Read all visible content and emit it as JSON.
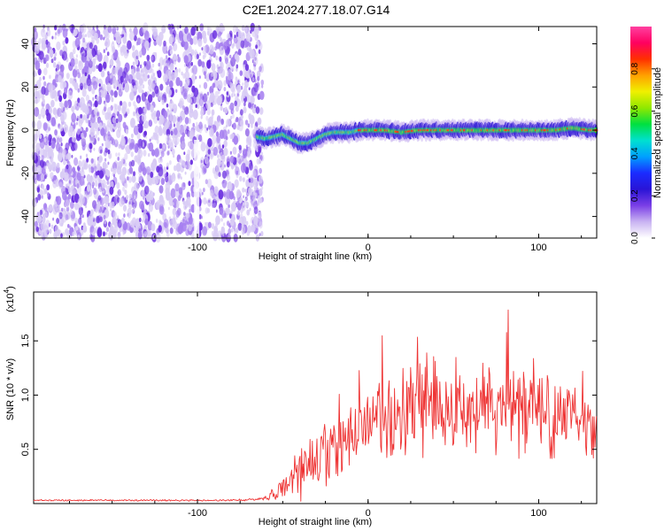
{
  "title": "C2E1.2024.277.18.07.G14",
  "chart_data": [
    {
      "type": "heatmap",
      "xlabel": "Height of straight line (km)",
      "ylabel": "Frequency (Hz)",
      "xlim": [
        -196,
        134
      ],
      "ylim": [
        -50,
        48
      ],
      "xticks": [
        -100,
        0,
        100
      ],
      "yticks": [
        -40,
        -20,
        0,
        20,
        40
      ],
      "noise_region_x": [
        -196,
        -65
      ],
      "signal_line": {
        "x": [
          -65,
          -60,
          -55,
          -50,
          -45,
          -40,
          -35,
          -30,
          -25,
          -20,
          -15,
          -10,
          -5,
          0,
          10,
          20,
          30,
          40,
          50,
          60,
          70,
          80,
          90,
          100,
          110,
          120,
          130,
          134
        ],
        "frequency": [
          -3,
          -4,
          -3,
          -2,
          -4,
          -6,
          -6,
          -4,
          -2,
          -1,
          -1,
          -1,
          0,
          0,
          0,
          -1,
          0,
          0,
          0,
          0,
          0,
          0,
          0,
          0,
          0,
          1,
          0,
          0
        ]
      },
      "colorbar": {
        "label": "Normalized spectral amplitude",
        "ticks": [
          "0.0",
          "0.2",
          "0.4",
          "0.6",
          "0.8"
        ],
        "range": [
          0,
          1
        ],
        "colors": [
          "#ffffff",
          "#c9b3f2",
          "#7a3fe6",
          "#2a14d6",
          "#1a2cff",
          "#00a0ff",
          "#00e0d0",
          "#00e040",
          "#90e800",
          "#f0f000",
          "#ffa000",
          "#ff3000",
          "#ff0060",
          "#ff40a0"
        ]
      }
    },
    {
      "type": "line",
      "xlabel": "Height of straight line (km)",
      "ylabel": "SNR (10 * v/v)",
      "scale_note": "(x10",
      "scale_exp": "4",
      "xlim": [
        -196,
        134
      ],
      "ylim": [
        0,
        1.95
      ],
      "xticks": [
        -100,
        0,
        100
      ],
      "yticks": [
        "0.5",
        "1.0",
        "1.5"
      ],
      "ytick_values": [
        0.5,
        1.0,
        1.5
      ],
      "line_color": "#ee3333",
      "profile": {
        "x": [
          -196,
          -80,
          -65,
          -50,
          -45,
          -40,
          -30,
          -25,
          -20,
          -15,
          -10,
          0,
          10,
          20,
          30,
          40,
          50,
          60,
          70,
          80,
          90,
          100,
          110,
          120,
          130,
          134
        ],
        "mean": [
          0.03,
          0.03,
          0.04,
          0.12,
          0.2,
          0.3,
          0.4,
          0.45,
          0.5,
          0.55,
          0.6,
          0.75,
          0.8,
          0.85,
          0.9,
          0.9,
          0.85,
          0.85,
          0.85,
          0.9,
          0.85,
          0.8,
          0.85,
          0.85,
          0.85,
          0.8
        ],
        "amplitude": [
          0.006,
          0.006,
          0.01,
          0.08,
          0.15,
          0.2,
          0.25,
          0.28,
          0.3,
          0.3,
          0.3,
          0.32,
          0.35,
          0.35,
          0.4,
          0.38,
          0.35,
          0.35,
          0.35,
          0.35,
          0.35,
          0.35,
          0.32,
          0.32,
          0.32,
          0.3
        ]
      }
    }
  ]
}
